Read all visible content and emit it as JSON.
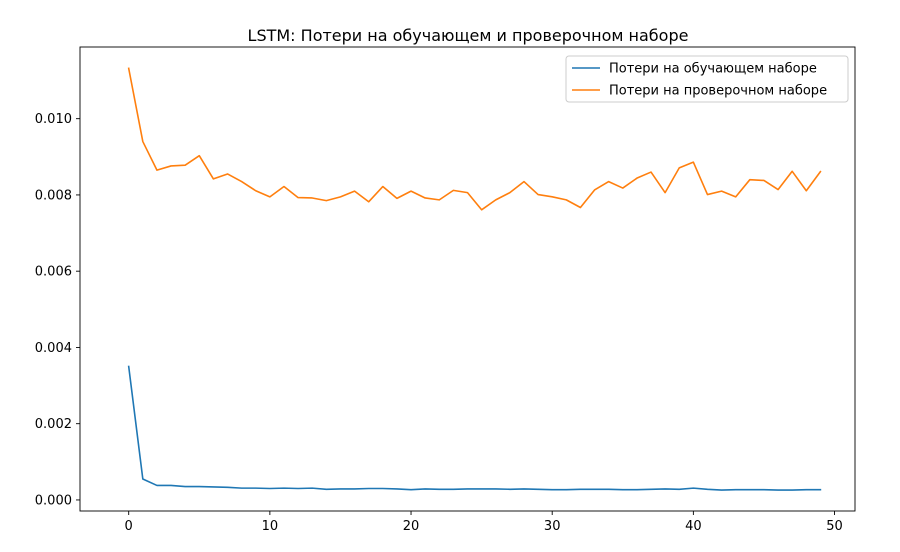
{
  "chart_data": {
    "type": "line",
    "title": "LSTM: Потери на обучающем и проверочном наборе",
    "xlabel": "",
    "ylabel": "",
    "xlim": [
      -3.45,
      51.45
    ],
    "ylim": [
      -0.00029,
      0.01188
    ],
    "x_ticks": [
      0,
      10,
      20,
      30,
      40,
      50
    ],
    "y_ticks": [
      0.0,
      0.002,
      0.004,
      0.006,
      0.008,
      0.01
    ],
    "y_tick_format_decimals": 3,
    "grid": false,
    "legend_position": "top-right",
    "x": [
      0,
      1,
      2,
      3,
      4,
      5,
      6,
      7,
      8,
      9,
      10,
      11,
      12,
      13,
      14,
      15,
      16,
      17,
      18,
      19,
      20,
      21,
      22,
      23,
      24,
      25,
      26,
      27,
      28,
      29,
      30,
      31,
      32,
      33,
      34,
      35,
      36,
      37,
      38,
      39,
      40,
      41,
      42,
      43,
      44,
      45,
      46,
      47,
      48,
      49
    ],
    "series": [
      {
        "name": "Потери на обучающем наборе",
        "color": "#1f77b4",
        "values": [
          0.0035,
          0.00055,
          0.00038,
          0.00038,
          0.00035,
          0.00035,
          0.00034,
          0.00033,
          0.00031,
          0.00031,
          0.0003,
          0.00031,
          0.0003,
          0.00031,
          0.00028,
          0.00029,
          0.00029,
          0.0003,
          0.0003,
          0.00029,
          0.00027,
          0.00029,
          0.00028,
          0.00028,
          0.00029,
          0.00029,
          0.00029,
          0.00028,
          0.00029,
          0.00028,
          0.00027,
          0.00027,
          0.00028,
          0.00028,
          0.00028,
          0.00027,
          0.00027,
          0.00028,
          0.00029,
          0.00028,
          0.00031,
          0.00028,
          0.00026,
          0.00027,
          0.00027,
          0.00027,
          0.00026,
          0.00026,
          0.00027,
          0.00027
        ]
      },
      {
        "name": "Потери на проверочном наборе",
        "color": "#ff7f0e",
        "values": [
          0.01132,
          0.0094,
          0.00865,
          0.00876,
          0.00878,
          0.00903,
          0.00842,
          0.00855,
          0.00835,
          0.00811,
          0.00795,
          0.00822,
          0.00793,
          0.00792,
          0.00785,
          0.00795,
          0.0081,
          0.00782,
          0.00822,
          0.00791,
          0.0081,
          0.00792,
          0.00787,
          0.00812,
          0.00806,
          0.00761,
          0.00787,
          0.00806,
          0.00835,
          0.00801,
          0.00795,
          0.00787,
          0.00767,
          0.00813,
          0.00835,
          0.00818,
          0.00844,
          0.0086,
          0.00806,
          0.00871,
          0.00886,
          0.00801,
          0.0081,
          0.00795,
          0.0084,
          0.00838,
          0.00814,
          0.00862,
          0.00811,
          0.00861
        ]
      }
    ]
  }
}
